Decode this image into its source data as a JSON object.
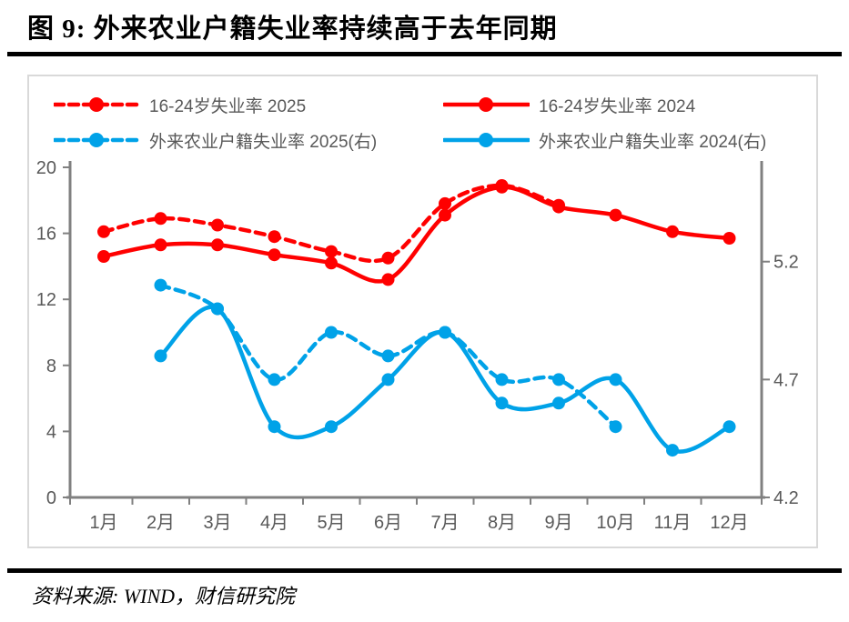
{
  "page": {
    "title": "图 9: 外来农业户籍失业率持续高于去年同期",
    "source": "资料来源: WIND，财信研究院"
  },
  "chart_data": {
    "type": "line",
    "title": "图 9: 外来农业户籍失业率持续高于去年同期",
    "categories": [
      "1月",
      "2月",
      "3月",
      "4月",
      "5月",
      "6月",
      "7月",
      "8月",
      "9月",
      "10月",
      "11月",
      "12月"
    ],
    "series": [
      {
        "name": "16-24岁失业率 2025",
        "axis": "left",
        "line_style": "dashed",
        "color": "#FF0000",
        "start_index": 0,
        "values": [
          16.1,
          16.9,
          16.5,
          15.8,
          14.9,
          14.5,
          17.8,
          18.9,
          17.7
        ]
      },
      {
        "name": "16-24岁失业率 2024",
        "axis": "left",
        "line_style": "solid",
        "color": "#FF0000",
        "start_index": 0,
        "values": [
          14.6,
          15.3,
          15.3,
          14.7,
          14.2,
          13.2,
          17.1,
          18.8,
          17.6,
          17.1,
          16.1,
          15.7
        ]
      },
      {
        "name": "外来农业户籍失业率 2025(右)",
        "axis": "right",
        "line_style": "dashed",
        "color": "#00A2E8",
        "start_index": 1,
        "values": [
          5.1,
          5.0,
          4.7,
          4.9,
          4.8,
          4.9,
          4.7,
          4.7,
          4.5
        ]
      },
      {
        "name": "外来农业户籍失业率 2024(右)",
        "axis": "right",
        "line_style": "solid",
        "color": "#00A2E8",
        "start_index": 1,
        "values": [
          4.8,
          5.0,
          4.5,
          4.5,
          4.7,
          4.9,
          4.6,
          4.6,
          4.7,
          4.4,
          4.5
        ]
      }
    ],
    "left_axis": {
      "min": 0,
      "max": 20,
      "ticks": [
        0,
        4,
        8,
        12,
        16,
        20
      ]
    },
    "right_axis": {
      "min": 4.2,
      "max": 5.6,
      "ticks": [
        4.2,
        4.7,
        5.2
      ]
    },
    "legend_position": "top",
    "grid": false,
    "smoothed": true,
    "colors": {
      "axis_line": "#808080",
      "tick_label": "#595959",
      "legend_text": "#595959"
    }
  }
}
